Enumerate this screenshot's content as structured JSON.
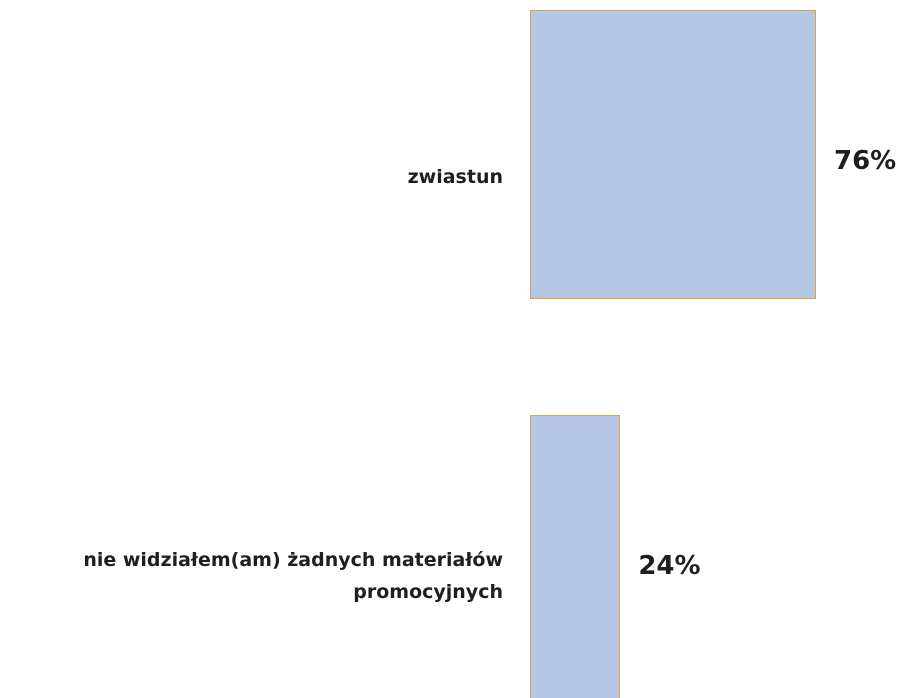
{
  "chart_data": {
    "type": "bar",
    "orientation": "horizontal",
    "categories": [
      "zwiastun",
      "nie widziałem(am) żadnych materiałów promocyjnych"
    ],
    "values": [
      76,
      24
    ],
    "value_labels": [
      "76%",
      "24%"
    ],
    "color": "#b4c7e7"
  }
}
